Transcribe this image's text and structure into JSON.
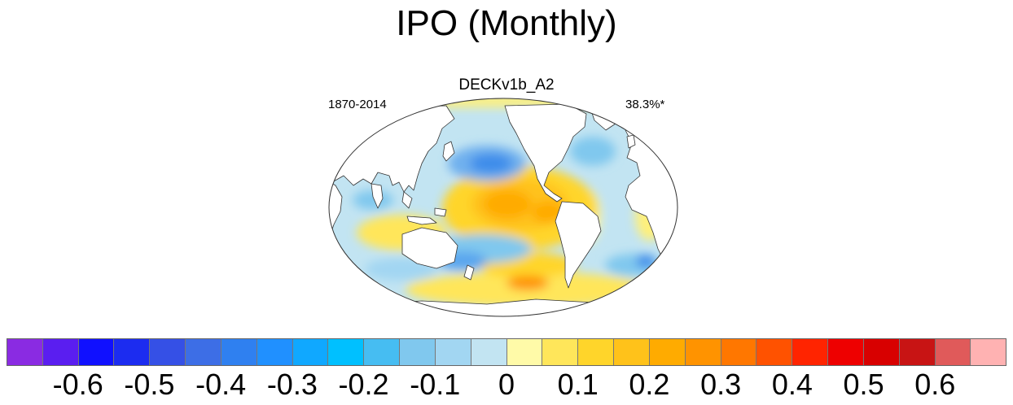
{
  "title": "IPO (Monthly)",
  "map": {
    "model_name": "DECKv1b_A2",
    "period": "1870-2014",
    "variance_explained": "38.3%*",
    "land_color": "#ffffff",
    "coast_color": "#333333"
  },
  "colorbar": {
    "colors": [
      "#8a2be2",
      "#5a1ef0",
      "#1010ff",
      "#1c2cf0",
      "#3550e6",
      "#3d6ee6",
      "#2f80f0",
      "#2090ff",
      "#10a8ff",
      "#00c0ff",
      "#46bdf2",
      "#80c8ee",
      "#a2d6f2",
      "#c2e4f2",
      "#fffaa8",
      "#ffe65a",
      "#ffd52a",
      "#ffc21a",
      "#ffab00",
      "#ff9300",
      "#ff7700",
      "#ff5200",
      "#ff2400",
      "#ee0000",
      "#d80000",
      "#c81414",
      "#e05a5a",
      "#ffb2b2"
    ],
    "tick_labels": [
      "-0.6",
      "-0.5",
      "-0.4",
      "-0.3",
      "-0.2",
      "-0.1",
      "0",
      "0.1",
      "0.2",
      "0.3",
      "0.4",
      "0.5",
      "0.6"
    ],
    "tick_values": [
      -0.6,
      -0.5,
      -0.4,
      -0.3,
      -0.2,
      -0.1,
      0,
      0.1,
      0.2,
      0.3,
      0.4,
      0.5,
      0.6
    ],
    "range": [
      -0.65,
      0.65
    ]
  }
}
